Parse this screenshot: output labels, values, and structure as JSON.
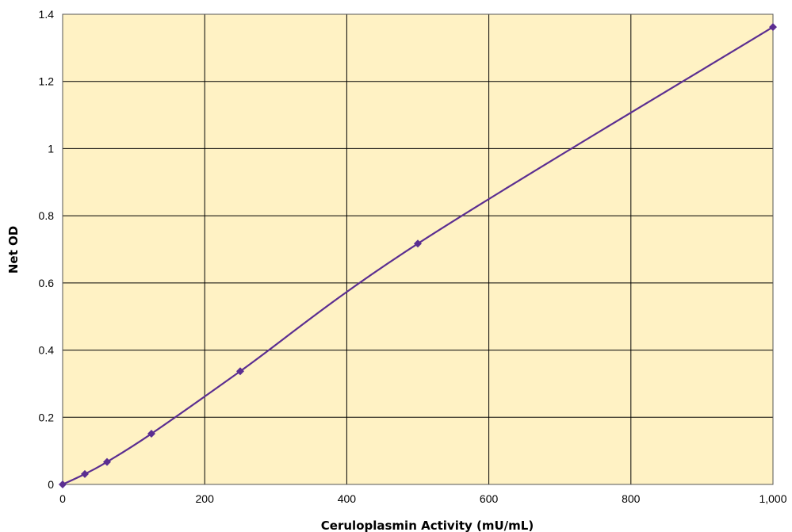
{
  "chart_data": {
    "type": "scatter",
    "title": "",
    "xlabel": "Ceruloplasmin Activity (mU/mL)",
    "ylabel": "Net OD",
    "xlim": [
      0,
      1000
    ],
    "ylim": [
      0,
      1.4
    ],
    "x_ticks": [
      0,
      200,
      400,
      600,
      800,
      1000
    ],
    "x_tick_labels": [
      "0",
      "200",
      "400",
      "600",
      "800",
      "1,000"
    ],
    "y_ticks": [
      0,
      0.2,
      0.4,
      0.6,
      0.8,
      1,
      1.2,
      1.4
    ],
    "y_tick_labels": [
      "0",
      "0.2",
      "0.4",
      "0.6",
      "0.8",
      "1",
      "1.2",
      "1.4"
    ],
    "grid": true,
    "smoothed_line": true,
    "marker": "diamond",
    "series": [
      {
        "x": [
          0,
          31.25,
          62.5,
          125,
          250,
          500,
          1000
        ],
        "y": [
          0,
          0.031,
          0.067,
          0.151,
          0.337,
          0.717,
          1.362
        ]
      }
    ],
    "colors": {
      "plot_background": "#FFF2C4",
      "series": "#5B2E91",
      "grid": "#000000"
    }
  }
}
